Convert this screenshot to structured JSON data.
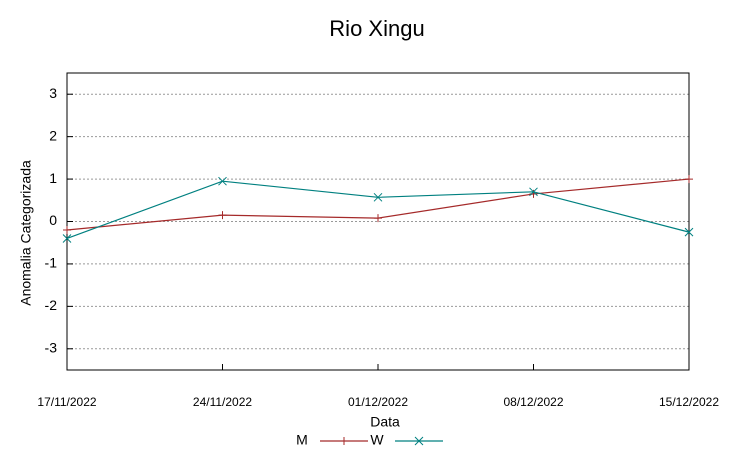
{
  "chart_data": {
    "type": "line",
    "title": "Rio Xingu",
    "x_label": "Data",
    "y_label": "Anomalia Categorizada",
    "x": [
      "17/11/2022",
      "24/11/2022",
      "01/12/2022",
      "08/12/2022",
      "15/12/2022"
    ],
    "series": [
      {
        "name": "M",
        "color": "#a52a2a",
        "marker": "+",
        "values": [
          -0.2,
          0.15,
          0.08,
          0.65,
          1.0
        ]
      },
      {
        "name": "W",
        "color": "#008080",
        "marker": "x",
        "values": [
          -0.4,
          0.95,
          0.57,
          0.7,
          -0.25
        ]
      }
    ],
    "ylim": [
      -3.5,
      3.5
    ],
    "yticks": [
      -3,
      -2,
      -1,
      0,
      1,
      2,
      3
    ],
    "grid": true
  }
}
